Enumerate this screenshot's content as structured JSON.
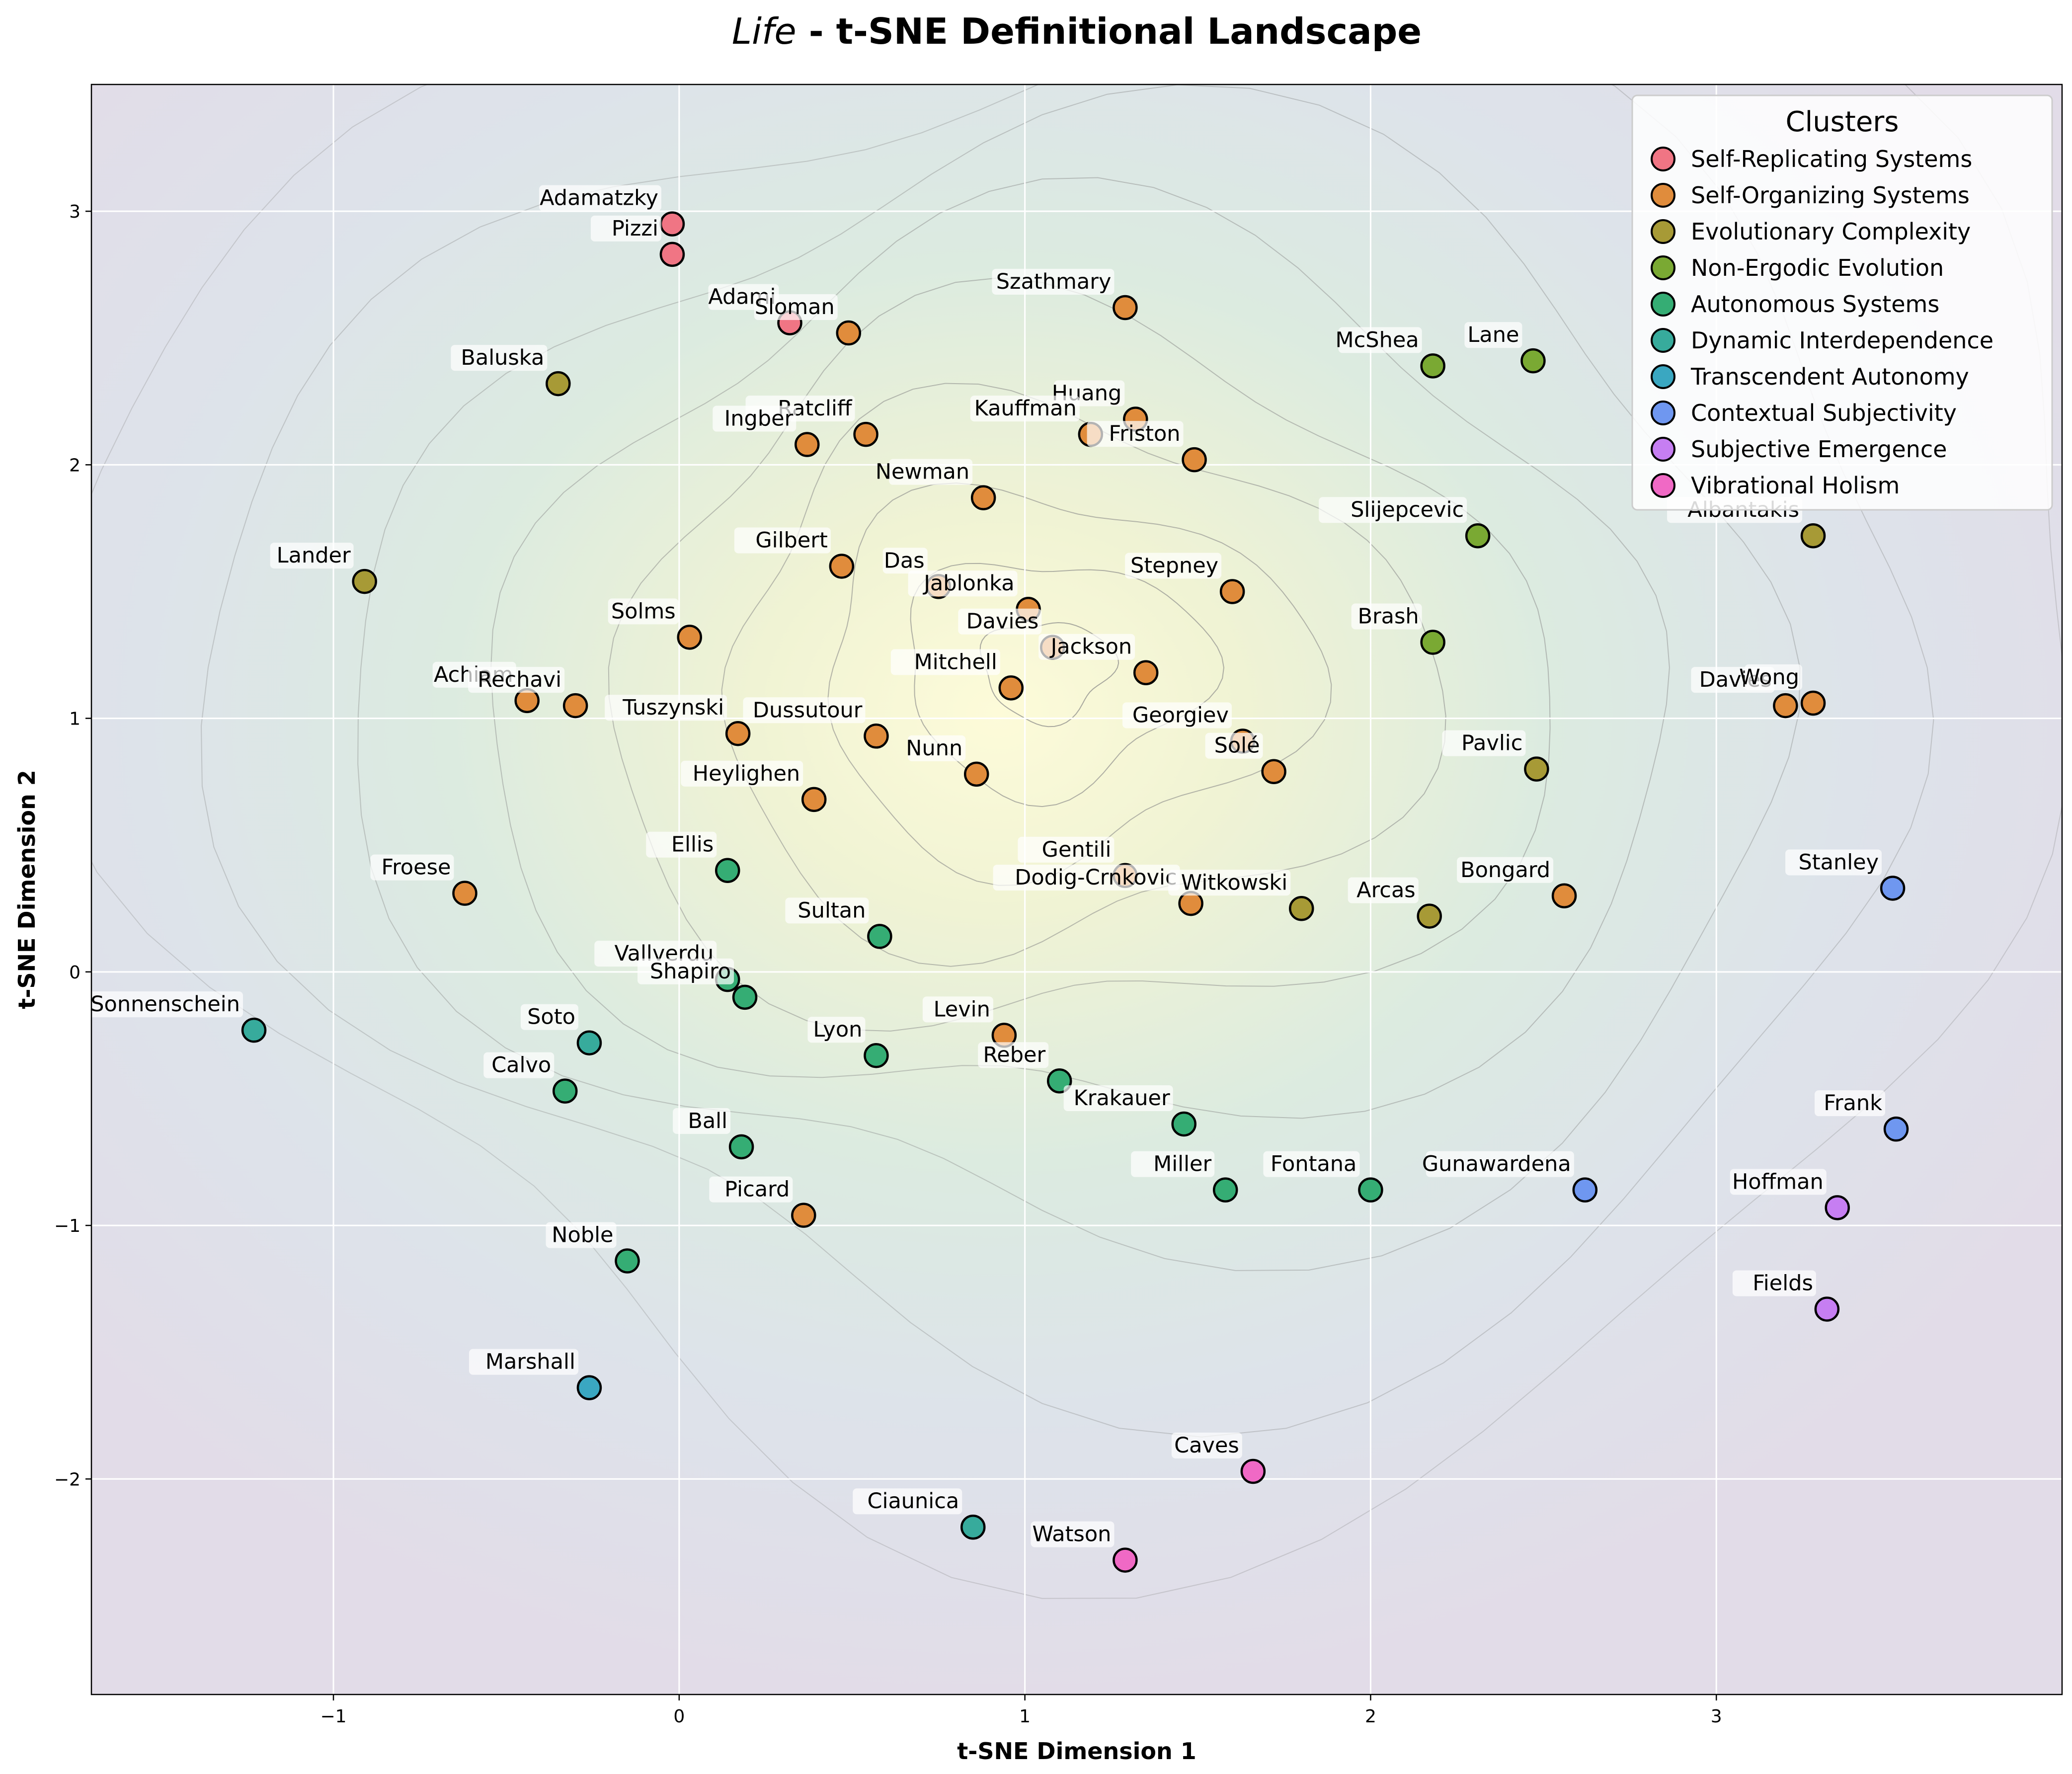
{
  "chart_data": {
    "type": "scatter",
    "title_italic": "Life",
    "title_rest": " - t-SNE Definitional Landscape",
    "xlabel": "t-SNE Dimension 1",
    "ylabel": "t-SNE Dimension 2",
    "xlim": [
      -1.7,
      4.0
    ],
    "ylim": [
      -2.85,
      3.5
    ],
    "xticks": [
      -1,
      0,
      1,
      2,
      3
    ],
    "yticks": [
      -2,
      -1,
      0,
      1,
      2,
      3
    ],
    "xtick_labels": [
      "−1",
      "0",
      "1",
      "2",
      "3"
    ],
    "ytick_labels": [
      "−2",
      "−1",
      "0",
      "1",
      "2",
      "3"
    ],
    "grid": true,
    "legend_title": "Clusters",
    "legend_position": "top-right",
    "density_background": true,
    "clusters": [
      {
        "name": "Self-Replicating Systems",
        "color": "#f07584"
      },
      {
        "name": "Self-Organizing Systems",
        "color": "#e08c3c"
      },
      {
        "name": "Evolutionary Complexity",
        "color": "#a79a36"
      },
      {
        "name": "Non-Ergodic Evolution",
        "color": "#7aa933"
      },
      {
        "name": "Autonomous Systems",
        "color": "#35ad74"
      },
      {
        "name": "Dynamic Interdependence",
        "color": "#37ab9c"
      },
      {
        "name": "Transcendent Autonomy",
        "color": "#3aa7c1"
      },
      {
        "name": "Contextual Subjectivity",
        "color": "#6f97f0"
      },
      {
        "name": "Subjective Emergence",
        "color": "#c67ef2"
      },
      {
        "name": "Vibrational Holism",
        "color": "#f069c5"
      }
    ],
    "points": [
      {
        "label": "Adamatzky",
        "x": -0.02,
        "y": 2.95,
        "cluster": 0
      },
      {
        "label": "Pizzi",
        "x": -0.02,
        "y": 2.83,
        "cluster": 0
      },
      {
        "label": "Adami",
        "x": 0.32,
        "y": 2.56,
        "cluster": 0
      },
      {
        "label": "Sloman",
        "x": 0.49,
        "y": 2.52,
        "cluster": 1
      },
      {
        "label": "Szathmary",
        "x": 1.29,
        "y": 2.62,
        "cluster": 1
      },
      {
        "label": "Baluska",
        "x": -0.35,
        "y": 2.32,
        "cluster": 2
      },
      {
        "label": "Huang",
        "x": 1.32,
        "y": 2.18,
        "cluster": 1
      },
      {
        "label": "Kauffman",
        "x": 1.19,
        "y": 2.12,
        "cluster": 1
      },
      {
        "label": "Friston",
        "x": 1.49,
        "y": 2.02,
        "cluster": 1
      },
      {
        "label": "Ratcliff",
        "x": 0.54,
        "y": 2.12,
        "cluster": 1
      },
      {
        "label": "Ingber",
        "x": 0.37,
        "y": 2.08,
        "cluster": 1
      },
      {
        "label": "Newman",
        "x": 0.88,
        "y": 1.87,
        "cluster": 1
      },
      {
        "label": "McShea",
        "x": 2.18,
        "y": 2.39,
        "cluster": 3
      },
      {
        "label": "Lane",
        "x": 2.47,
        "y": 2.41,
        "cluster": 3
      },
      {
        "label": "Slijepcevic",
        "x": 2.31,
        "y": 1.72,
        "cluster": 3
      },
      {
        "label": "Albantakis",
        "x": 3.28,
        "y": 1.72,
        "cluster": 2
      },
      {
        "label": "Lander",
        "x": -0.91,
        "y": 1.54,
        "cluster": 2
      },
      {
        "label": "Gilbert",
        "x": 0.47,
        "y": 1.6,
        "cluster": 1
      },
      {
        "label": "Das",
        "x": 0.75,
        "y": 1.52,
        "cluster": 1
      },
      {
        "label": "Jablonka",
        "x": 1.01,
        "y": 1.43,
        "cluster": 1
      },
      {
        "label": "Stepney",
        "x": 1.6,
        "y": 1.5,
        "cluster": 1
      },
      {
        "label": "Davies",
        "x": 1.08,
        "y": 1.28,
        "cluster": 1
      },
      {
        "label": "Jackson",
        "x": 1.35,
        "y": 1.18,
        "cluster": 1
      },
      {
        "label": "Mitchell",
        "x": 0.96,
        "y": 1.12,
        "cluster": 1
      },
      {
        "label": "Brash",
        "x": 2.18,
        "y": 1.3,
        "cluster": 3
      },
      {
        "label": "Solms",
        "x": 0.03,
        "y": 1.32,
        "cluster": 1
      },
      {
        "label": "Achiam",
        "x": -0.44,
        "y": 1.07,
        "cluster": 1
      },
      {
        "label": "Rechavi",
        "x": -0.3,
        "y": 1.05,
        "cluster": 1
      },
      {
        "label": "Tuszynski",
        "x": 0.17,
        "y": 0.94,
        "cluster": 1
      },
      {
        "label": "Dussutour",
        "x": 0.57,
        "y": 0.93,
        "cluster": 1
      },
      {
        "label": "Georgiev",
        "x": 1.63,
        "y": 0.91,
        "cluster": 1
      },
      {
        "label": "Nunn",
        "x": 0.86,
        "y": 0.78,
        "cluster": 1
      },
      {
        "label": "Solé",
        "x": 1.72,
        "y": 0.79,
        "cluster": 1
      },
      {
        "label": "Pavlic",
        "x": 2.48,
        "y": 0.8,
        "cluster": 2
      },
      {
        "label": "Davies",
        "x": 3.2,
        "y": 1.05,
        "cluster": 1
      },
      {
        "label": "Wong",
        "x": 3.28,
        "y": 1.06,
        "cluster": 1
      },
      {
        "label": "Heylighen",
        "x": 0.39,
        "y": 0.68,
        "cluster": 1
      },
      {
        "label": "Froese",
        "x": -0.62,
        "y": 0.31,
        "cluster": 1
      },
      {
        "label": "Ellis",
        "x": 0.14,
        "y": 0.4,
        "cluster": 4
      },
      {
        "label": "Gentili",
        "x": 1.29,
        "y": 0.38,
        "cluster": 1
      },
      {
        "label": "Dodig-Crnkovic",
        "x": 1.48,
        "y": 0.27,
        "cluster": 1
      },
      {
        "label": "Witkowski",
        "x": 1.8,
        "y": 0.25,
        "cluster": 2
      },
      {
        "label": "Arcas",
        "x": 2.17,
        "y": 0.22,
        "cluster": 2
      },
      {
        "label": "Bongard",
        "x": 2.56,
        "y": 0.3,
        "cluster": 1
      },
      {
        "label": "Stanley",
        "x": 3.51,
        "y": 0.33,
        "cluster": 7
      },
      {
        "label": "Sultan",
        "x": 0.58,
        "y": 0.14,
        "cluster": 4
      },
      {
        "label": "Vallverdu",
        "x": 0.14,
        "y": -0.03,
        "cluster": 4
      },
      {
        "label": "Shapiro",
        "x": 0.19,
        "y": -0.1,
        "cluster": 4
      },
      {
        "label": "Sonnenschein",
        "x": -1.23,
        "y": -0.23,
        "cluster": 5
      },
      {
        "label": "Soto",
        "x": -0.26,
        "y": -0.28,
        "cluster": 5
      },
      {
        "label": "Levin",
        "x": 0.94,
        "y": -0.25,
        "cluster": 1
      },
      {
        "label": "Lyon",
        "x": 0.57,
        "y": -0.33,
        "cluster": 4
      },
      {
        "label": "Reber",
        "x": 1.1,
        "y": -0.43,
        "cluster": 4
      },
      {
        "label": "Calvo",
        "x": -0.33,
        "y": -0.47,
        "cluster": 4
      },
      {
        "label": "Krakauer",
        "x": 1.46,
        "y": -0.6,
        "cluster": 4
      },
      {
        "label": "Frank",
        "x": 3.52,
        "y": -0.62,
        "cluster": 7
      },
      {
        "label": "Ball",
        "x": 0.18,
        "y": -0.69,
        "cluster": 4
      },
      {
        "label": "Miller",
        "x": 1.58,
        "y": -0.86,
        "cluster": 4
      },
      {
        "label": "Fontana",
        "x": 2.0,
        "y": -0.86,
        "cluster": 4
      },
      {
        "label": "Gunawardena",
        "x": 2.62,
        "y": -0.86,
        "cluster": 7
      },
      {
        "label": "Hoffman",
        "x": 3.35,
        "y": -0.93,
        "cluster": 8
      },
      {
        "label": "Picard",
        "x": 0.36,
        "y": -0.96,
        "cluster": 1
      },
      {
        "label": "Noble",
        "x": -0.15,
        "y": -1.14,
        "cluster": 4
      },
      {
        "label": "Fields",
        "x": 3.32,
        "y": -1.33,
        "cluster": 8
      },
      {
        "label": "Marshall",
        "x": -0.26,
        "y": -1.64,
        "cluster": 6
      },
      {
        "label": "Caves",
        "x": 1.66,
        "y": -1.97,
        "cluster": 9
      },
      {
        "label": "Ciaunica",
        "x": 0.85,
        "y": -2.19,
        "cluster": 5
      },
      {
        "label": "Watson",
        "x": 1.29,
        "y": -2.32,
        "cluster": 9
      }
    ]
  }
}
